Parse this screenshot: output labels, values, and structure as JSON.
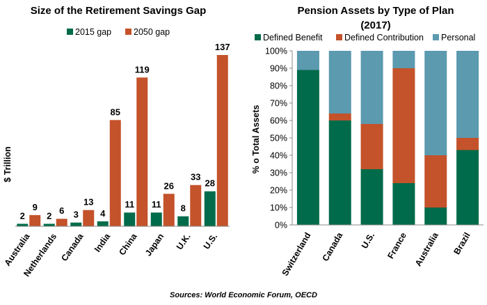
{
  "chart_data": [
    {
      "type": "bar",
      "title": "Size of the Retirement Savings Gap",
      "ylabel": "$ Trillion",
      "categories": [
        "Australia",
        "Netherlands",
        "Canada",
        "India",
        "China",
        "Japan",
        "U.K.",
        "U.S."
      ],
      "series": [
        {
          "name": "2015 gap",
          "values": [
            2,
            2,
            3,
            4,
            11,
            11,
            8,
            28
          ]
        },
        {
          "name": "2050 gap",
          "values": [
            9,
            6,
            13,
            85,
            119,
            26,
            33,
            137
          ]
        }
      ],
      "ylim": [
        0,
        140
      ],
      "legend_position": "top",
      "grid": false
    },
    {
      "type": "bar",
      "stacked": true,
      "title": "Pension Assets by Type of Plan",
      "subtitle": "(2017)",
      "ylabel": "% o Total Assets",
      "categories": [
        "Switzerland",
        "Canada",
        "U.S.",
        "France",
        "Australia",
        "Brazil"
      ],
      "series": [
        {
          "name": "Defined Benefit",
          "values": [
            89,
            60,
            32,
            24,
            10,
            43
          ]
        },
        {
          "name": "Defined Contribution",
          "values": [
            0,
            4,
            26,
            66,
            30,
            7
          ]
        },
        {
          "name": "Personal",
          "values": [
            11,
            36,
            42,
            10,
            60,
            50
          ]
        }
      ],
      "yticks": [
        "0%",
        "10%",
        "20%",
        "30%",
        "40%",
        "50%",
        "60%",
        "70%",
        "80%",
        "90%",
        "100%"
      ],
      "ylim": [
        0,
        100
      ],
      "legend_position": "top",
      "grid": false
    }
  ],
  "colors": {
    "green": "#006b4a",
    "orange": "#c4522a",
    "blue": "#5b9aaf",
    "axis": "#888888"
  },
  "source": "Sources: World Economic Forum, OECD"
}
